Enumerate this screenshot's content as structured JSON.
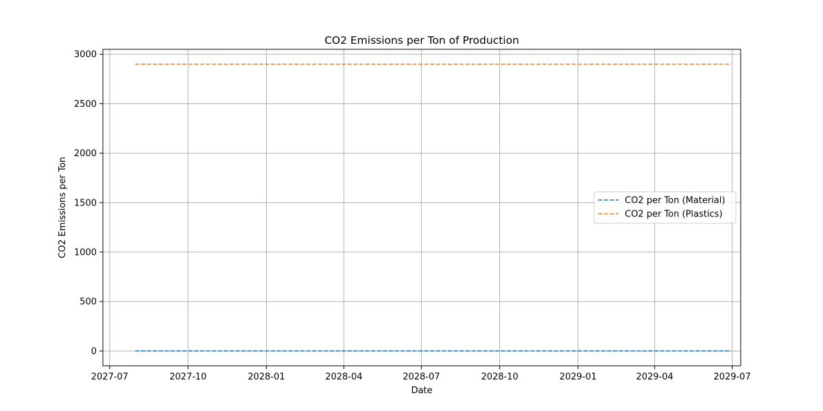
{
  "chart_data": {
    "type": "line",
    "title": "CO2 Emissions per Ton of Production",
    "xlabel": "Date",
    "ylabel": "CO2 Emissions per Ton",
    "x_type": "date",
    "x_range": [
      "2027-06-23",
      "2029-07-11"
    ],
    "x_ticks": [
      {
        "date": "2027-07-01",
        "label": "2027-07"
      },
      {
        "date": "2027-10-01",
        "label": "2027-10"
      },
      {
        "date": "2028-01-01",
        "label": "2028-01"
      },
      {
        "date": "2028-04-01",
        "label": "2028-04"
      },
      {
        "date": "2028-07-01",
        "label": "2028-07"
      },
      {
        "date": "2028-10-01",
        "label": "2028-10"
      },
      {
        "date": "2029-01-01",
        "label": "2029-01"
      },
      {
        "date": "2029-04-01",
        "label": "2029-04"
      },
      {
        "date": "2029-07-01",
        "label": "2029-07"
      }
    ],
    "ylim": [
      -150,
      3050
    ],
    "y_ticks": [
      0,
      500,
      1000,
      1500,
      2000,
      2500,
      3000
    ],
    "grid": true,
    "legend_position": "center-right",
    "series": [
      {
        "name": "CO2 per Ton (Material)",
        "color": "#1f77b4",
        "line_style": "dashed",
        "x": [
          "2027-07-31",
          "2029-06-30"
        ],
        "y": [
          0,
          0
        ]
      },
      {
        "name": "CO2 per Ton (Plastics)",
        "color": "#ff7f0e",
        "line_style": "dashed",
        "x": [
          "2027-07-31",
          "2029-06-30"
        ],
        "y": [
          2900,
          2900
        ]
      }
    ]
  }
}
